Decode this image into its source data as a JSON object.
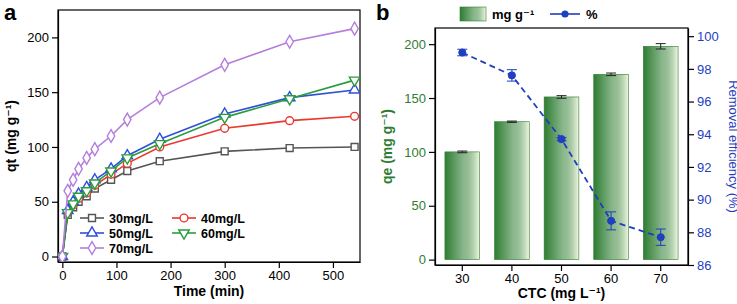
{
  "chart_data": [
    {
      "type": "line",
      "annotations": [
        "a"
      ],
      "xlabel": "Time (min)",
      "ylabel": "qt (mg g⁻¹)",
      "x": [
        0,
        10,
        20,
        30,
        45,
        60,
        90,
        120,
        180,
        300,
        420,
        540
      ],
      "xlim": [
        -8,
        550
      ],
      "xticks": [
        0,
        100,
        200,
        300,
        400,
        500
      ],
      "ylim": [
        -5,
        225
      ],
      "yticks": [
        0,
        50,
        100,
        150,
        200
      ],
      "grid": false,
      "legend": "lower left",
      "series": [
        {
          "name": "30mg/L",
          "color": "#555555",
          "marker": "square",
          "values": [
            0,
            38,
            45,
            50,
            55,
            62,
            70,
            78,
            87,
            96,
            99,
            100
          ]
        },
        {
          "name": "40mg/L",
          "color": "#e8392f",
          "marker": "circle",
          "values": [
            0,
            40,
            47,
            53,
            58,
            65,
            75,
            85,
            100,
            117,
            124,
            128
          ]
        },
        {
          "name": "50mg/L",
          "color": "#2f4fd8",
          "marker": "triangle-up",
          "values": [
            0,
            42,
            50,
            57,
            63,
            70,
            80,
            92,
            107,
            130,
            145,
            152
          ]
        },
        {
          "name": "60mg/L",
          "color": "#2a9d3c",
          "marker": "triangle-down",
          "values": [
            0,
            40,
            48,
            55,
            60,
            67,
            78,
            90,
            103,
            127,
            144,
            161
          ]
        },
        {
          "name": "70mg/L",
          "color": "#b57edc",
          "marker": "diamond",
          "values": [
            0,
            60,
            70,
            80,
            90,
            98,
            110,
            125,
            145,
            175,
            196,
            208
          ]
        }
      ]
    },
    {
      "type": "bar",
      "annotations": [
        "b"
      ],
      "xlabel": "CTC (mg L⁻¹)",
      "ylabel": "qe (mg g⁻¹)",
      "y2label": "Removal efficiency (%)",
      "categories": [
        "30",
        "40",
        "50",
        "60",
        "70"
      ],
      "ylim": [
        -5,
        215
      ],
      "yticks": [
        0,
        50,
        100,
        150,
        200
      ],
      "y2lim": [
        86,
        100.5
      ],
      "y2ticks": [
        86,
        88,
        90,
        92,
        94,
        96,
        98,
        100
      ],
      "grid": false,
      "legend": "top",
      "series": [
        {
          "name": "mg g⁻¹",
          "type": "bar",
          "color": "#2e7d32",
          "values": [
            100,
            128,
            151,
            172,
            198
          ],
          "errors": [
            0.8,
            0.6,
            1.2,
            1.2,
            2.5
          ]
        },
        {
          "name": "%",
          "type": "line",
          "axis": "y2",
          "color": "#1f3fbf",
          "marker": "circle",
          "line_style": "dashed",
          "values": [
            99.0,
            97.6,
            93.7,
            88.7,
            87.7
          ],
          "errors": [
            0.2,
            0.35,
            0.1,
            0.55,
            0.5
          ]
        }
      ]
    }
  ]
}
